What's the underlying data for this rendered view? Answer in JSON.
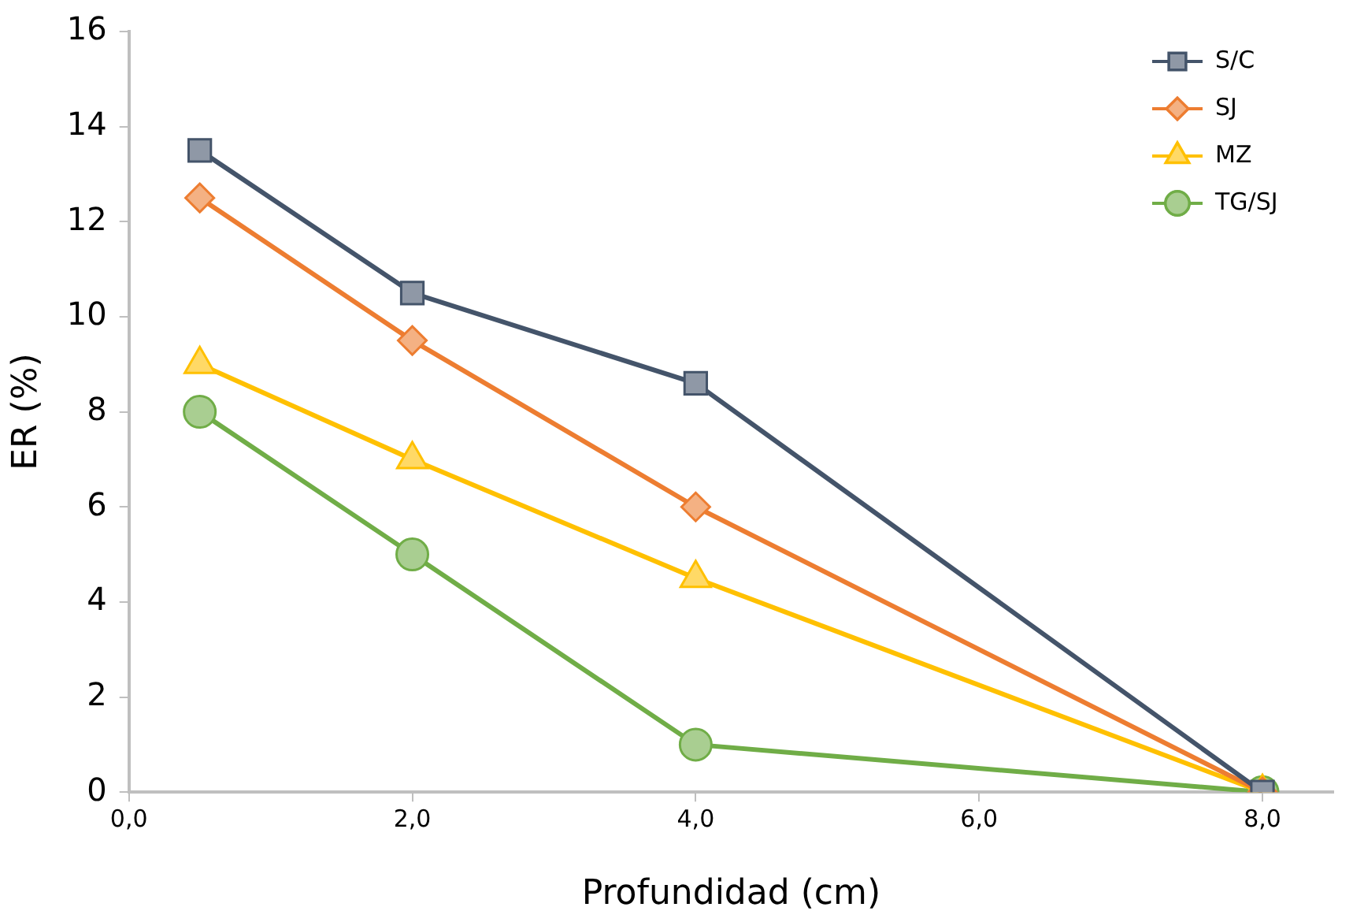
{
  "chart_data": {
    "type": "line",
    "xlabel": "Profundidad (cm)",
    "ylabel": "ER (%)",
    "x": [
      0.5,
      2,
      4,
      8
    ],
    "series": [
      {
        "name": "S/C",
        "color": "#44546a",
        "marker": "square",
        "values": [
          13.5,
          10.5,
          8.6,
          0
        ]
      },
      {
        "name": "SJ",
        "color": "#ed7d31",
        "marker": "diamond",
        "values": [
          12.5,
          9.5,
          6.0,
          0
        ]
      },
      {
        "name": "MZ",
        "color": "#ffc000",
        "marker": "triangle",
        "values": [
          9.0,
          7.0,
          4.5,
          0
        ]
      },
      {
        "name": "TG/SJ",
        "color": "#70ad47",
        "marker": "circle",
        "values": [
          8.0,
          5.0,
          1.0,
          0
        ]
      }
    ],
    "xlim": [
      0,
      8.5
    ],
    "xticks": [
      {
        "value": 0,
        "label": "0,0"
      },
      {
        "value": 2,
        "label": "2,0"
      },
      {
        "value": 4,
        "label": "4,0"
      },
      {
        "value": 6,
        "label": "6,0"
      },
      {
        "value": 8,
        "label": "8,0"
      }
    ],
    "ylim": [
      0,
      16
    ],
    "yticks": [
      0,
      2,
      4,
      6,
      8,
      10,
      12,
      14,
      16
    ],
    "grid": false,
    "legend": "top right",
    "line_style": "solid"
  }
}
